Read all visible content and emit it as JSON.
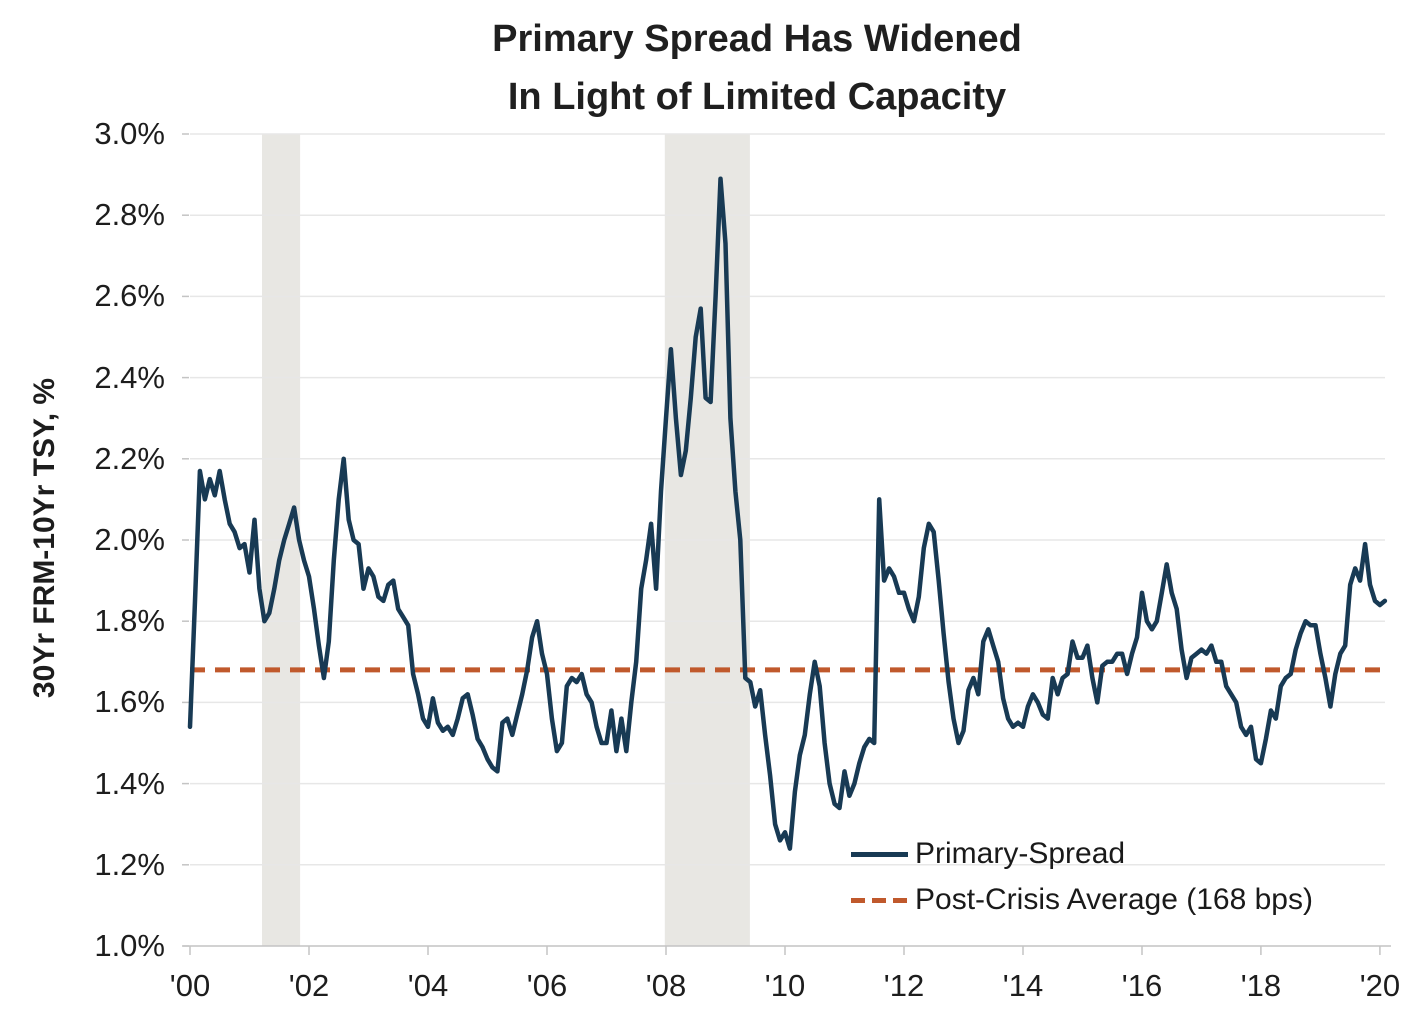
{
  "title": {
    "line1": "Primary Spread Has Widened",
    "line2": "In Light of Limited Capacity"
  },
  "y_axis_title": "30Yr FRM-10Yr TSY, %",
  "legend": {
    "primary_label": "Primary-Spread",
    "average_label": "Post-Crisis Average (168 bps)"
  },
  "colors": {
    "line": "#183A54",
    "average": "#C0592C",
    "recession_band": "#E8E7E3",
    "grid": "#E7E7E7",
    "axis": "#C4C4C4",
    "text": "#1D1D1D"
  },
  "chart_data": {
    "type": "line",
    "title": "Primary Spread Has Widened In Light of Limited Capacity",
    "xlabel": "",
    "ylabel": "30Yr FRM-10Yr TSY, %",
    "ylim": [
      1.0,
      3.0
    ],
    "xlim": [
      2000,
      2020.085
    ],
    "grid": "horizontal",
    "legend_position": "inside-bottom-right",
    "y_ticks": {
      "values": [
        1.0,
        1.2,
        1.4,
        1.6,
        1.8,
        2.0,
        2.2,
        2.4,
        2.6,
        2.8,
        3.0
      ],
      "labels": [
        "1.0%",
        "1.2%",
        "1.4%",
        "1.6%",
        "1.8%",
        "2.0%",
        "2.2%",
        "2.4%",
        "2.6%",
        "2.8%",
        "3.0%"
      ]
    },
    "x_ticks": {
      "values": [
        2000,
        2002,
        2004,
        2006,
        2008,
        2010,
        2012,
        2014,
        2016,
        2018,
        2020
      ],
      "labels": [
        "'00",
        "'02",
        "'04",
        "'06",
        "'08",
        "'10",
        "'12",
        "'14",
        "'16",
        "'18",
        "'20"
      ]
    },
    "recession_bands": [
      [
        2001.21,
        2001.85
      ],
      [
        2007.98,
        2009.41
      ]
    ],
    "series": [
      {
        "name": "Primary-Spread",
        "type": "monthly",
        "style": "solid",
        "color": "#183A54",
        "x_start": 2000.0,
        "x_step": 0.0833333,
        "values": [
          1.54,
          1.85,
          2.17,
          2.1,
          2.15,
          2.11,
          2.17,
          2.1,
          2.04,
          2.02,
          1.98,
          1.99,
          1.92,
          2.05,
          1.88,
          1.8,
          1.82,
          1.88,
          1.95,
          2.0,
          2.04,
          2.08,
          2.0,
          1.95,
          1.91,
          1.83,
          1.74,
          1.66,
          1.75,
          1.95,
          2.1,
          2.2,
          2.05,
          2.0,
          1.99,
          1.88,
          1.93,
          1.91,
          1.86,
          1.85,
          1.89,
          1.9,
          1.83,
          1.81,
          1.79,
          1.67,
          1.62,
          1.56,
          1.54,
          1.61,
          1.55,
          1.53,
          1.54,
          1.52,
          1.56,
          1.61,
          1.62,
          1.57,
          1.51,
          1.49,
          1.46,
          1.44,
          1.43,
          1.55,
          1.56,
          1.52,
          1.57,
          1.62,
          1.68,
          1.76,
          1.8,
          1.72,
          1.67,
          1.56,
          1.48,
          1.5,
          1.64,
          1.66,
          1.65,
          1.67,
          1.62,
          1.6,
          1.54,
          1.5,
          1.5,
          1.58,
          1.48,
          1.56,
          1.48,
          1.6,
          1.7,
          1.88,
          1.95,
          2.04,
          1.88,
          2.12,
          2.3,
          2.47,
          2.3,
          2.16,
          2.22,
          2.35,
          2.5,
          2.57,
          2.35,
          2.34,
          2.6,
          2.89,
          2.73,
          2.3,
          2.12,
          2.0,
          1.66,
          1.65,
          1.59,
          1.63,
          1.52,
          1.42,
          1.3,
          1.26,
          1.28,
          1.24,
          1.38,
          1.47,
          1.52,
          1.62,
          1.7,
          1.64,
          1.5,
          1.4,
          1.35,
          1.34,
          1.43,
          1.37,
          1.4,
          1.45,
          1.49,
          1.51,
          1.5,
          2.1,
          1.9,
          1.93,
          1.91,
          1.87,
          1.87,
          1.83,
          1.8,
          1.86,
          1.98,
          2.04,
          2.02,
          1.9,
          1.77,
          1.65,
          1.56,
          1.5,
          1.53,
          1.63,
          1.66,
          1.62,
          1.75,
          1.78,
          1.74,
          1.7,
          1.61,
          1.56,
          1.54,
          1.55,
          1.54,
          1.59,
          1.62,
          1.6,
          1.57,
          1.56,
          1.66,
          1.62,
          1.66,
          1.67,
          1.75,
          1.71,
          1.71,
          1.74,
          1.66,
          1.6,
          1.69,
          1.7,
          1.7,
          1.72,
          1.72,
          1.67,
          1.72,
          1.76,
          1.87,
          1.8,
          1.78,
          1.8,
          1.87,
          1.94,
          1.87,
          1.83,
          1.73,
          1.66,
          1.71,
          1.72,
          1.73,
          1.72,
          1.74,
          1.7,
          1.7,
          1.64,
          1.62,
          1.6,
          1.54,
          1.52,
          1.54,
          1.46,
          1.45,
          1.51,
          1.58,
          1.56,
          1.64,
          1.66,
          1.67,
          1.73,
          1.77,
          1.8,
          1.79,
          1.79,
          1.72,
          1.66,
          1.59,
          1.67,
          1.72,
          1.74,
          1.89,
          1.93,
          1.9,
          1.99,
          1.89,
          1.85,
          1.84,
          1.85
        ]
      },
      {
        "name": "Post-Crisis Average (168 bps)",
        "type": "constant",
        "style": "dashed",
        "color": "#C0592C",
        "value": 1.68
      }
    ]
  }
}
